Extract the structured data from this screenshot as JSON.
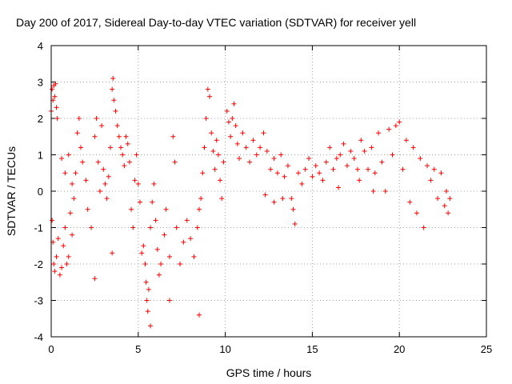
{
  "chart_data": {
    "type": "scatter",
    "title": "Day 200 of 2017, Sidereal Day-to-day VTEC variation (SDTVAR) for receiver yell",
    "xlabel": "GPS time / hours",
    "ylabel": "SDTVAR / TECUs",
    "xlim": [
      0,
      25
    ],
    "ylim": [
      -4,
      4
    ],
    "xticks": [
      "0",
      "5",
      "10",
      "15",
      "20",
      "25"
    ],
    "yticks": [
      "-4",
      "-3",
      "-2",
      "-1",
      "0",
      "1",
      "2",
      "3",
      "4"
    ],
    "grid": true,
    "legend": "none",
    "marker": "+",
    "color": "#ff0000",
    "series": [
      {
        "name": "SDTVAR",
        "points": [
          [
            0.0,
            2.2
          ],
          [
            0.05,
            2.8
          ],
          [
            0.1,
            2.5
          ],
          [
            0.15,
            2.9
          ],
          [
            0.2,
            2.6
          ],
          [
            0.25,
            2.95
          ],
          [
            0.3,
            2.3
          ],
          [
            0.35,
            2.0
          ],
          [
            0.05,
            -0.8
          ],
          [
            0.1,
            -1.4
          ],
          [
            0.15,
            -2.0
          ],
          [
            0.2,
            -2.2
          ],
          [
            0.3,
            -1.8
          ],
          [
            0.4,
            -1.3
          ],
          [
            0.5,
            -2.3
          ],
          [
            0.6,
            -2.1
          ],
          [
            0.7,
            -1.5
          ],
          [
            0.8,
            -1.0
          ],
          [
            0.9,
            -2.0
          ],
          [
            1.0,
            -1.8
          ],
          [
            1.1,
            -0.6
          ],
          [
            1.2,
            -1.2
          ],
          [
            1.3,
            -0.2
          ],
          [
            1.4,
            0.5
          ],
          [
            0.6,
            0.9
          ],
          [
            0.8,
            0.5
          ],
          [
            1.0,
            1.0
          ],
          [
            1.2,
            0.2
          ],
          [
            1.5,
            1.6
          ],
          [
            1.6,
            2.0
          ],
          [
            1.7,
            1.2
          ],
          [
            1.8,
            0.8
          ],
          [
            2.0,
            0.3
          ],
          [
            2.1,
            -0.5
          ],
          [
            2.3,
            -1.0
          ],
          [
            2.5,
            1.5
          ],
          [
            2.6,
            2.0
          ],
          [
            2.7,
            0.8
          ],
          [
            2.8,
            0.0
          ],
          [
            2.9,
            1.8
          ],
          [
            3.0,
            0.6
          ],
          [
            3.1,
            0.2
          ],
          [
            3.2,
            -0.2
          ],
          [
            3.3,
            0.4
          ],
          [
            3.4,
            1.2
          ],
          [
            3.5,
            2.8
          ],
          [
            3.55,
            3.1
          ],
          [
            3.6,
            2.5
          ],
          [
            3.7,
            2.2
          ],
          [
            3.8,
            1.8
          ],
          [
            3.9,
            1.5
          ],
          [
            4.0,
            1.2
          ],
          [
            4.1,
            1.0
          ],
          [
            4.2,
            0.7
          ],
          [
            4.3,
            1.5
          ],
          [
            4.4,
            1.3
          ],
          [
            4.5,
            0.8
          ],
          [
            4.6,
            -0.5
          ],
          [
            4.7,
            -1.0
          ],
          [
            4.8,
            0.3
          ],
          [
            4.9,
            1.0
          ],
          [
            5.0,
            0.2
          ],
          [
            5.1,
            -0.3
          ],
          [
            5.2,
            -1.7
          ],
          [
            5.3,
            -1.5
          ],
          [
            5.4,
            -2.0
          ],
          [
            5.45,
            -2.5
          ],
          [
            5.5,
            -3.0
          ],
          [
            5.55,
            -3.3
          ],
          [
            5.6,
            -2.7
          ],
          [
            5.7,
            -1.0
          ],
          [
            5.8,
            -0.3
          ],
          [
            5.9,
            0.2
          ],
          [
            6.0,
            -0.8
          ],
          [
            6.1,
            -1.6
          ],
          [
            6.2,
            -2.3
          ],
          [
            6.3,
            -2.0
          ],
          [
            6.5,
            -1.2
          ],
          [
            6.6,
            -0.5
          ],
          [
            6.8,
            -1.8
          ],
          [
            7.0,
            1.5
          ],
          [
            7.1,
            0.8
          ],
          [
            7.2,
            -1.0
          ],
          [
            7.4,
            -2.0
          ],
          [
            7.6,
            -1.4
          ],
          [
            7.8,
            -0.8
          ],
          [
            8.0,
            -1.3
          ],
          [
            8.2,
            -1.8
          ],
          [
            8.4,
            -1.0
          ],
          [
            8.5,
            -0.5
          ],
          [
            8.6,
            -0.2
          ],
          [
            8.7,
            0.5
          ],
          [
            8.8,
            1.2
          ],
          [
            8.9,
            2.0
          ],
          [
            9.0,
            2.8
          ],
          [
            9.1,
            2.6
          ],
          [
            9.2,
            1.6
          ],
          [
            9.3,
            1.1
          ],
          [
            9.4,
            0.6
          ],
          [
            9.5,
            1.4
          ],
          [
            9.6,
            1.0
          ],
          [
            9.7,
            0.3
          ],
          [
            9.8,
            -0.2
          ],
          [
            9.9,
            0.8
          ],
          [
            10.1,
            2.2
          ],
          [
            10.2,
            1.9
          ],
          [
            10.3,
            1.5
          ],
          [
            10.4,
            2.0
          ],
          [
            10.5,
            2.4
          ],
          [
            10.6,
            1.8
          ],
          [
            10.7,
            1.3
          ],
          [
            10.8,
            0.9
          ],
          [
            11.0,
            1.6
          ],
          [
            11.2,
            1.2
          ],
          [
            11.4,
            0.8
          ],
          [
            11.6,
            1.4
          ],
          [
            11.8,
            1.0
          ],
          [
            12.0,
            1.2
          ],
          [
            12.2,
            1.6
          ],
          [
            12.4,
            1.1
          ],
          [
            12.6,
            0.6
          ],
          [
            12.8,
            0.9
          ],
          [
            13.0,
            0.5
          ],
          [
            13.2,
            1.0
          ],
          [
            13.4,
            0.4
          ],
          [
            13.6,
            0.7
          ],
          [
            13.8,
            -0.2
          ],
          [
            14.0,
            -0.9
          ],
          [
            14.2,
            0.5
          ],
          [
            14.4,
            0.2
          ],
          [
            14.6,
            0.6
          ],
          [
            14.8,
            0.9
          ],
          [
            15.0,
            0.4
          ],
          [
            15.2,
            0.7
          ],
          [
            15.4,
            0.5
          ],
          [
            15.6,
            0.3
          ],
          [
            15.8,
            0.8
          ],
          [
            16.0,
            1.2
          ],
          [
            16.2,
            0.6
          ],
          [
            16.4,
            0.9
          ],
          [
            16.6,
            1.0
          ],
          [
            16.8,
            1.3
          ],
          [
            17.0,
            0.7
          ],
          [
            17.2,
            1.1
          ],
          [
            17.4,
            0.9
          ],
          [
            17.6,
            0.6
          ],
          [
            17.8,
            1.4
          ],
          [
            18.0,
            1.1
          ],
          [
            18.2,
            0.6
          ],
          [
            18.4,
            1.2
          ],
          [
            18.6,
            0.5
          ],
          [
            18.8,
            1.6
          ],
          [
            19.0,
            0.8
          ],
          [
            19.2,
            0.0
          ],
          [
            19.4,
            1.7
          ],
          [
            19.6,
            1.0
          ],
          [
            19.8,
            1.8
          ],
          [
            20.0,
            1.9
          ],
          [
            20.2,
            0.6
          ],
          [
            20.4,
            1.4
          ],
          [
            20.6,
            -0.3
          ],
          [
            20.8,
            1.2
          ],
          [
            21.0,
            -0.6
          ],
          [
            21.2,
            0.9
          ],
          [
            21.4,
            -1.0
          ],
          [
            21.6,
            0.7
          ],
          [
            21.8,
            0.3
          ],
          [
            22.0,
            0.6
          ],
          [
            22.2,
            -0.2
          ],
          [
            22.4,
            0.5
          ],
          [
            22.6,
            -0.4
          ],
          [
            22.8,
            -0.6
          ],
          [
            22.7,
            0.0
          ],
          [
            22.9,
            -0.2
          ],
          [
            12.3,
            -0.1
          ],
          [
            12.8,
            -0.3
          ],
          [
            13.3,
            -0.2
          ],
          [
            13.9,
            -0.5
          ],
          [
            16.5,
            0.1
          ],
          [
            17.7,
            0.3
          ],
          [
            18.5,
            0.0
          ],
          [
            2.5,
            -2.4
          ],
          [
            5.7,
            -3.7
          ],
          [
            6.8,
            -3.0
          ],
          [
            8.5,
            -3.4
          ],
          [
            3.5,
            -1.7
          ]
        ]
      }
    ]
  }
}
